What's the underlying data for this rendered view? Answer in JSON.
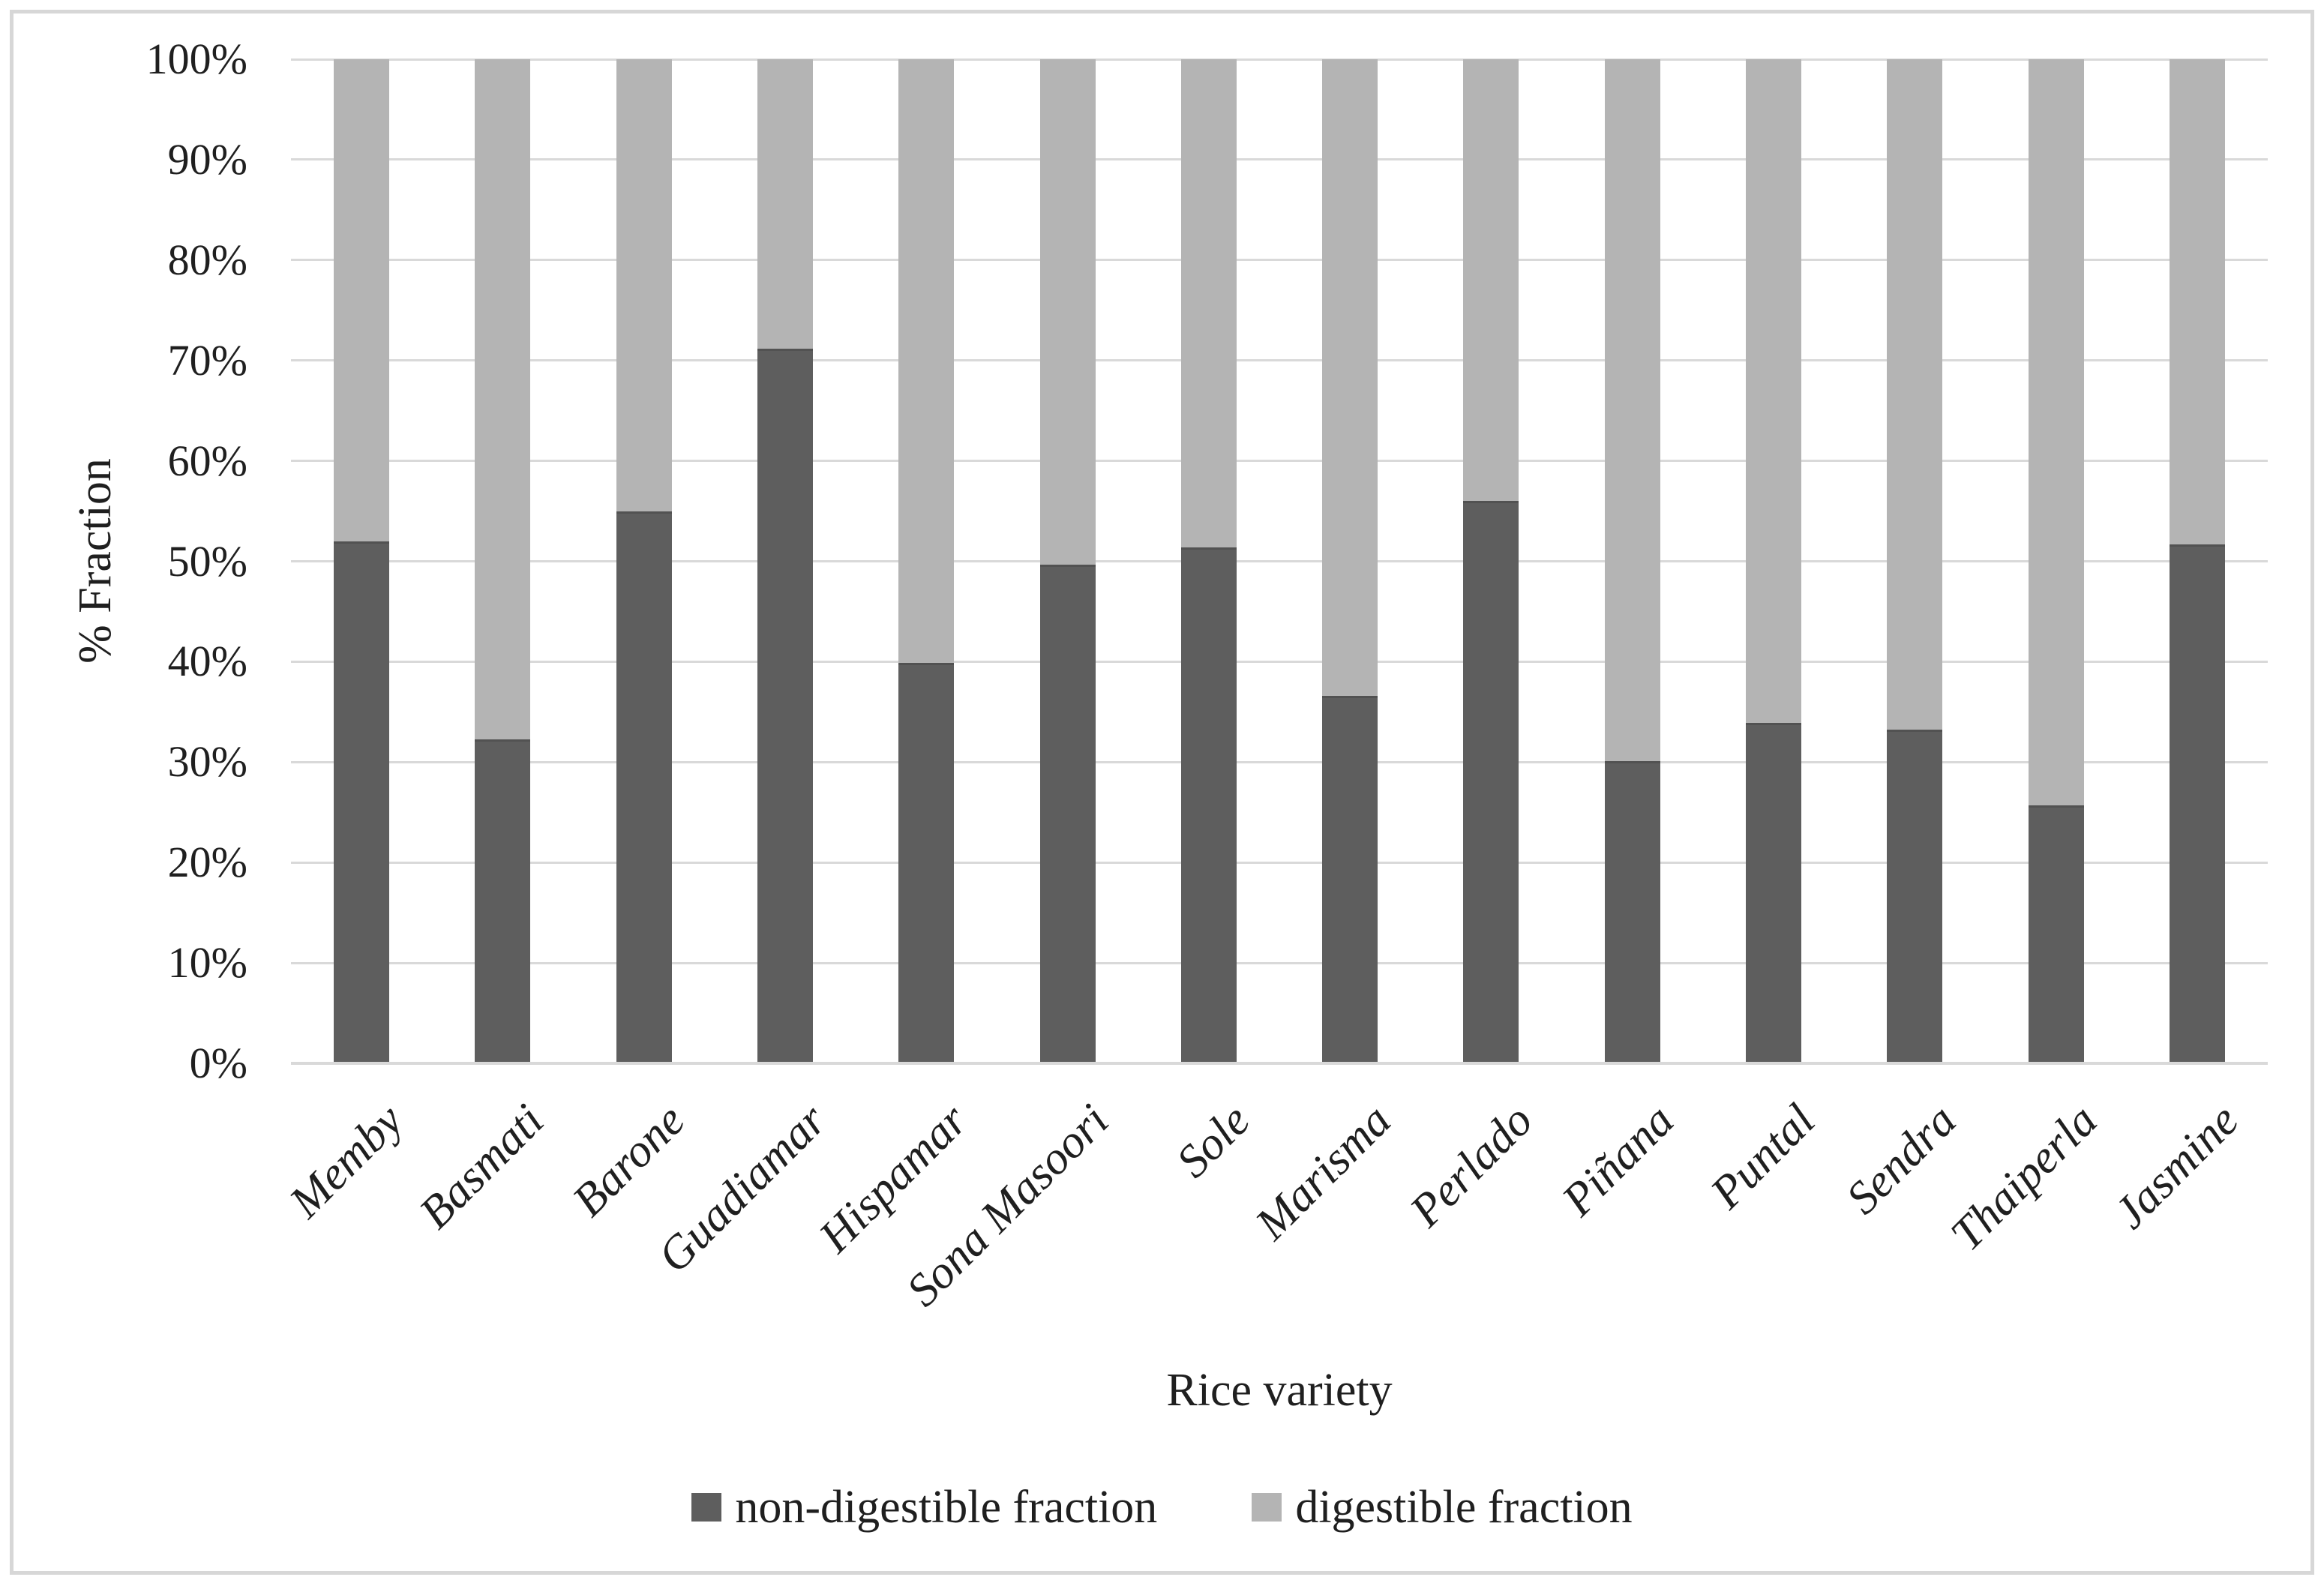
{
  "figure": {
    "background": "#ffffff",
    "border_color": "#d7d7d7",
    "text_color": "#1f1f1f"
  },
  "chart_data": {
    "type": "bar",
    "subtype": "stacked-100-percent-column",
    "title": "",
    "xlabel": "Rice variety",
    "ylabel": "% Fraction",
    "categories": [
      "Memby",
      "Basmati",
      "Barone",
      "Guadiamar",
      "Hispamar",
      "Sona Masoori",
      "Sole",
      "Marisma",
      "Perlado",
      "Piñana",
      "Puntal",
      "Sendra",
      "Thaiperla",
      "Jasmine"
    ],
    "series": [
      {
        "name": "non-digestible fraction",
        "color": "#5e5e5e",
        "values": [
          52.0,
          32.3,
          55.0,
          71.2,
          39.9,
          49.7,
          51.4,
          36.6,
          56.0,
          30.1,
          33.9,
          33.2,
          25.7,
          51.7
        ]
      },
      {
        "name": "digestible fraction",
        "color": "#b4b4b4",
        "values": [
          48.0,
          67.7,
          45.0,
          28.8,
          60.1,
          50.3,
          48.6,
          63.4,
          44.0,
          69.9,
          66.1,
          66.8,
          74.3,
          48.3
        ]
      }
    ],
    "y_axis": {
      "min": 0,
      "max": 100,
      "step": 10,
      "tick_labels": [
        "100%",
        "90%",
        "80%",
        "70%",
        "60%",
        "50%",
        "40%",
        "30%",
        "20%",
        "10%",
        "0%"
      ]
    },
    "grid": true,
    "gridline_color": "#d9d9d9",
    "axis_line_color": "#d9d9d9",
    "legend_position": "bottom-center"
  }
}
